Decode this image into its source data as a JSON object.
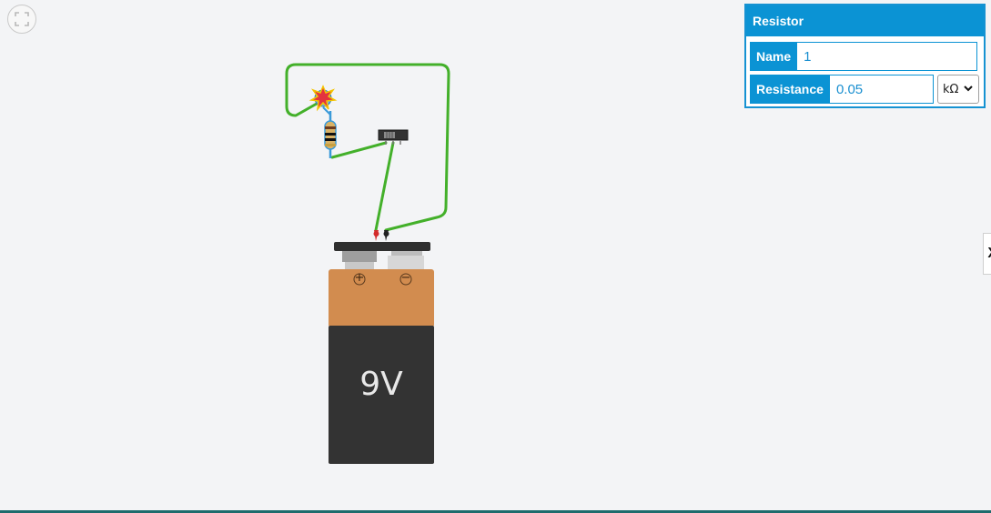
{
  "inspector": {
    "title": "Resistor",
    "name_label": "Name",
    "name_value": "1",
    "resistance_label": "Resistance",
    "resistance_value": "0.05",
    "unit_selected": "kΩ"
  },
  "battery": {
    "label": "9V",
    "plus_symbol": "+",
    "minus_symbol": "−"
  },
  "side_panel": {
    "toggle_glyph": "X"
  },
  "icons": {
    "fit_view": "fit-view-icon",
    "unit_chevron": "chevron-down-icon"
  },
  "colors": {
    "accent": "#0b93d4",
    "wire": "#43b02a",
    "battery_top": "#d28c4f",
    "battery_body": "#333333",
    "resistor_lead": "#3a9ad9",
    "led_explosion": "#e3343f"
  }
}
